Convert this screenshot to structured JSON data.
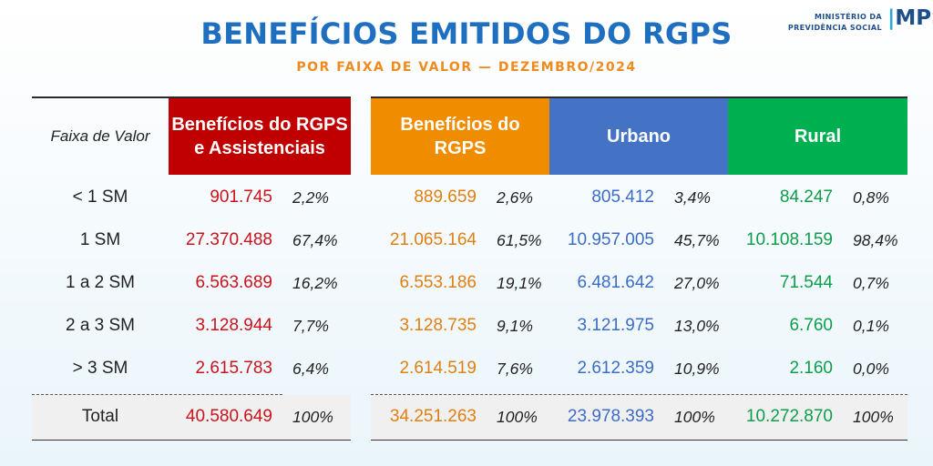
{
  "title": "BENEFÍCIOS EMITIDOS DO RGPS",
  "subtitle": "POR FAIXA DE VALOR — DEZEMBRO/2024",
  "logo": {
    "line1": "MINISTÉRIO DA",
    "line2": "PREVIDÊNCIA SOCIAL",
    "mark": "MPS"
  },
  "colors": {
    "red": "#c00000",
    "orange": "#f08c00",
    "blue": "#4472c4",
    "green": "#00b050",
    "title": "#1f6fc0",
    "subtitle": "#ef8a1f"
  },
  "chart_data": {
    "type": "table",
    "title": "BENEFÍCIOS EMITIDOS DO RGPS",
    "subtitle": "POR FAIXA DE VALOR — DEZEMBRO/2024",
    "row_header": "Faixa de Valor",
    "columns": {
      "total": {
        "line1": "Benefícios do RGPS",
        "line2": "e Assistenciais"
      },
      "rgps": {
        "line1": "Benefícios do",
        "line2": "RGPS"
      },
      "urbano": "Urbano",
      "rural": "Rural"
    },
    "rows": [
      {
        "label": "< 1 SM",
        "total": "901.745",
        "total_pct": "2,2%",
        "rgps": "889.659",
        "rgps_pct": "2,6%",
        "urbano": "805.412",
        "urbano_pct": "3,4%",
        "rural": "84.247",
        "rural_pct": "0,8%"
      },
      {
        "label": "1 SM",
        "total": "27.370.488",
        "total_pct": "67,4%",
        "rgps": "21.065.164",
        "rgps_pct": "61,5%",
        "urbano": "10.957.005",
        "urbano_pct": "45,7%",
        "rural": "10.108.159",
        "rural_pct": "98,4%"
      },
      {
        "label": "1 a 2 SM",
        "total": "6.563.689",
        "total_pct": "16,2%",
        "rgps": "6.553.186",
        "rgps_pct": "19,1%",
        "urbano": "6.481.642",
        "urbano_pct": "27,0%",
        "rural": "71.544",
        "rural_pct": "0,7%"
      },
      {
        "label": "2 a 3 SM",
        "total": "3.128.944",
        "total_pct": "7,7%",
        "rgps": "3.128.735",
        "rgps_pct": "9,1%",
        "urbano": "3.121.975",
        "urbano_pct": "13,0%",
        "rural": "6.760",
        "rural_pct": "0,1%"
      },
      {
        "label": "> 3 SM",
        "total": "2.615.783",
        "total_pct": "6,4%",
        "rgps": "2.614.519",
        "rgps_pct": "7,6%",
        "urbano": "2.612.359",
        "urbano_pct": "10,9%",
        "rural": "2.160",
        "rural_pct": "0,0%"
      },
      {
        "label": "Total",
        "total": "40.580.649",
        "total_pct": "100%",
        "rgps": "34.251.263",
        "rgps_pct": "100%",
        "urbano": "23.978.393",
        "urbano_pct": "100%",
        "rural": "10.272.870",
        "rural_pct": "100%"
      }
    ]
  }
}
